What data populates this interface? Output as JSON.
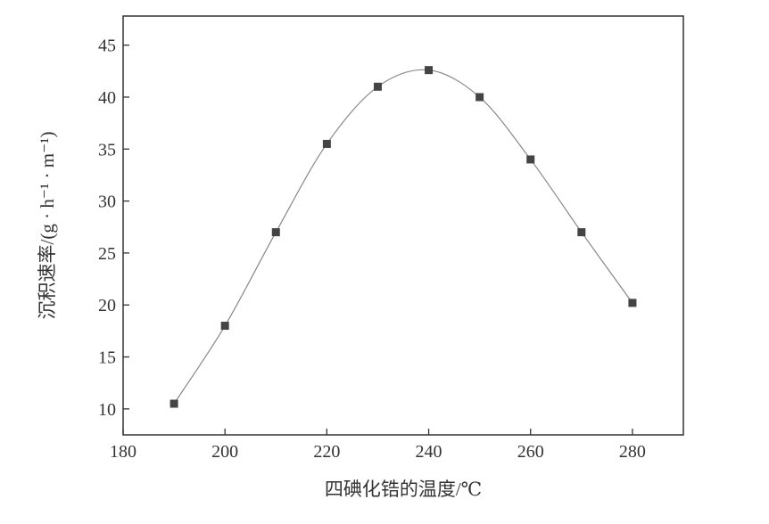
{
  "chart_data": {
    "type": "line",
    "title": "",
    "xlabel": "四碘化锆的温度/℃",
    "ylabel": "沉积速率/(g · h⁻¹ · m⁻¹)",
    "xlim": [
      180,
      290
    ],
    "ylim": [
      7.5,
      47.8
    ],
    "xticks": [
      180,
      200,
      220,
      240,
      260,
      280
    ],
    "yticks": [
      10,
      15,
      20,
      25,
      30,
      35,
      40,
      45
    ],
    "grid": false,
    "marker": "square",
    "line_style": "smooth",
    "colors": {
      "marker": "#444444",
      "line": "#888888",
      "axis": "#333333"
    },
    "series": [
      {
        "x": [
          190,
          200,
          210,
          220,
          230,
          240,
          250,
          260,
          270,
          280
        ],
        "y": [
          10.5,
          18,
          27,
          35.5,
          41,
          42.6,
          40,
          34,
          27,
          20.2
        ]
      }
    ]
  }
}
